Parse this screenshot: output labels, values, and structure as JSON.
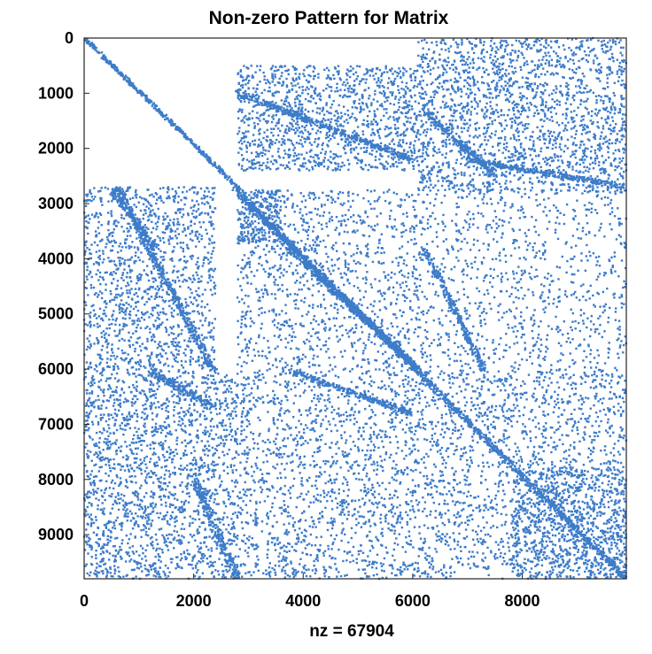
{
  "chart_data": {
    "type": "spy",
    "title": "Non-zero Pattern for Matrix",
    "xlabel": "nz = 67904",
    "ylabel": "",
    "nz": 67904,
    "xlim": [
      0,
      9900
    ],
    "ylim": [
      9800,
      0
    ],
    "x_ticks": [
      0,
      2000,
      4000,
      6000,
      8000
    ],
    "y_ticks": [
      0,
      1000,
      2000,
      3000,
      4000,
      5000,
      6000,
      7000,
      8000,
      9000
    ],
    "grid": false,
    "legend": "none",
    "marker_color": "#3d7cc9",
    "structure": {
      "diagonals": [
        {
          "from": [
            0,
            0
          ],
          "to": [
            2850,
            2750
          ],
          "thickness": 30
        },
        {
          "from": [
            2750,
            2750
          ],
          "to": [
            9900,
            9800
          ],
          "thickness": 50
        },
        {
          "from": [
            3000,
            3000
          ],
          "to": [
            6100,
            6000
          ],
          "thickness": 40
        },
        {
          "from": [
            600,
            2700
          ],
          "to": [
            2400,
            6100
          ],
          "thickness": 60
        },
        {
          "from": [
            500,
            2750
          ],
          "to": [
            1300,
            3800
          ],
          "thickness": 60
        },
        {
          "from": [
            1200,
            6050
          ],
          "to": [
            2400,
            6700
          ],
          "thickness": 60
        },
        {
          "from": [
            2000,
            8000
          ],
          "to": [
            2800,
            9800
          ],
          "thickness": 60
        },
        {
          "from": [
            3700,
            3800
          ],
          "to": [
            6100,
            6000
          ],
          "thickness": 50
        },
        {
          "from": [
            6200,
            3800
          ],
          "to": [
            7300,
            6000
          ],
          "thickness": 50
        },
        {
          "from": [
            3800,
            6050
          ],
          "to": [
            6000,
            6800
          ],
          "thickness": 50
        },
        {
          "from": [
            6200,
            1300
          ],
          "to": [
            7500,
            2500
          ],
          "thickness": 60
        },
        {
          "from": [
            2800,
            1000
          ],
          "to": [
            6000,
            2200
          ],
          "thickness": 50
        },
        {
          "from": [
            7000,
            2200
          ],
          "to": [
            9900,
            2700
          ],
          "thickness": 50
        }
      ],
      "blocks": [
        {
          "x": [
            2800,
            6100
          ],
          "y": [
            500,
            2400
          ],
          "density": 0.55
        },
        {
          "x": [
            6100,
            9900
          ],
          "y": [
            0,
            2800
          ],
          "density": 0.5
        },
        {
          "x": [
            0,
            2400
          ],
          "y": [
            2700,
            6100
          ],
          "density": 0.45
        },
        {
          "x": [
            0,
            2800
          ],
          "y": [
            6100,
            9800
          ],
          "density": 0.5
        },
        {
          "x": [
            2800,
            3600
          ],
          "y": [
            2750,
            3700
          ],
          "density": 0.85
        },
        {
          "x": [
            2800,
            6100
          ],
          "y": [
            2750,
            6000
          ],
          "density": 0.28
        },
        {
          "x": [
            6100,
            9900
          ],
          "y": [
            2750,
            6000
          ],
          "density": 0.2
        },
        {
          "x": [
            2800,
            9900
          ],
          "y": [
            6000,
            9800
          ],
          "density": 0.32
        },
        {
          "x": [
            7800,
            9900
          ],
          "y": [
            7800,
            9800
          ],
          "density": 0.5
        }
      ]
    }
  }
}
